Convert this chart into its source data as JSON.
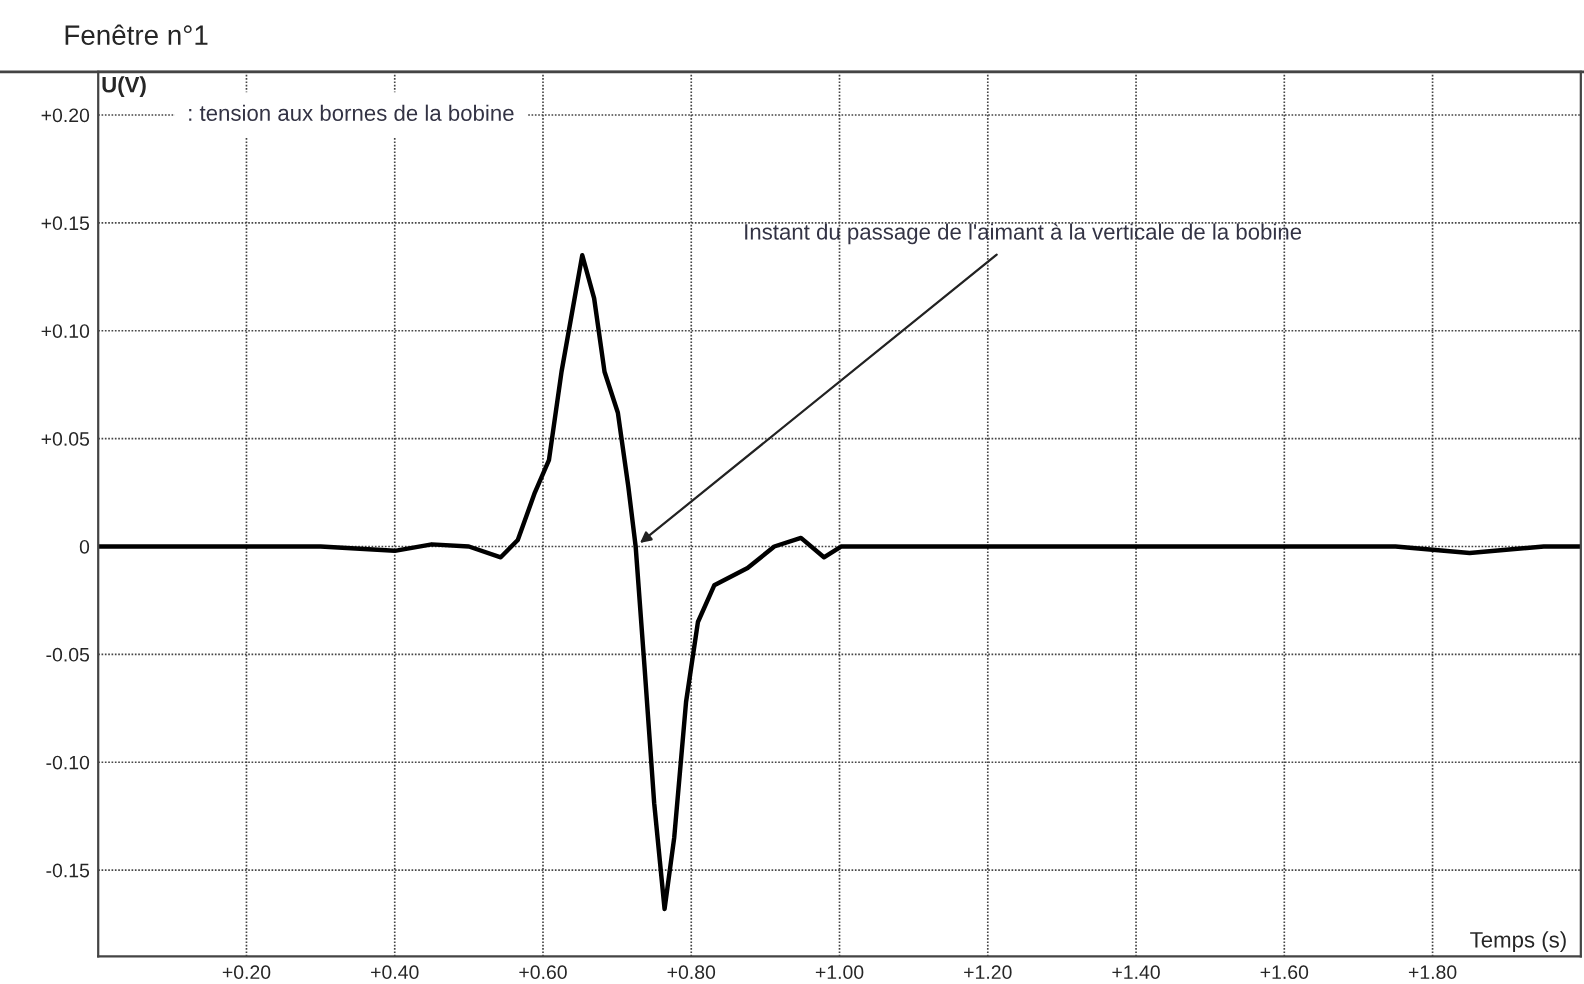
{
  "chart_data": {
    "type": "line",
    "title": "Fenêtre n°1",
    "xlabel": "Temps (s)",
    "ylabel": "U(V)",
    "annotations": [
      ": tension aux bornes de la bobine",
      {
        "text": "Instant du passage de l'aimant à la verticale de la bobine",
        "x": 0.725,
        "y": 0
      }
    ],
    "series": [
      {
        "color": "#000000",
        "x": [
          0,
          0.1,
          0.2,
          0.3,
          0.4,
          0.45,
          0.5,
          0.543,
          0.566,
          0.589,
          0.608,
          0.625,
          0.653,
          0.669,
          0.683,
          0.701,
          0.715,
          0.725,
          0.737,
          0.75,
          0.764,
          0.777,
          0.793,
          0.809,
          0.831,
          0.876,
          0.912,
          0.948,
          0.979,
          1.002,
          1.2,
          1.4,
          1.6,
          1.75,
          1.85,
          1.95,
          2.0
        ],
        "values": [
          0,
          0,
          0,
          0,
          -0.002,
          0.001,
          0,
          -0.005,
          0.003,
          0.025,
          0.04,
          0.081,
          0.135,
          0.115,
          0.081,
          0.062,
          0.028,
          0,
          -0.056,
          -0.119,
          -0.168,
          -0.135,
          -0.072,
          -0.035,
          -0.018,
          -0.01,
          0,
          0.004,
          -0.005,
          0,
          0,
          0,
          0,
          0,
          -0.003,
          0,
          0
        ]
      }
    ],
    "xlim": [
      0,
      2.0
    ],
    "ylim": [
      -0.19,
      0.22
    ],
    "xticks": [
      {
        "value": 0.2,
        "label": "+0.20"
      },
      {
        "value": 0.4,
        "label": "+0.40"
      },
      {
        "value": 0.6,
        "label": "+0.60"
      },
      {
        "value": 0.8,
        "label": "+0.80"
      },
      {
        "value": 1.0,
        "label": "+1.00"
      },
      {
        "value": 1.2,
        "label": "+1.20"
      },
      {
        "value": 1.4,
        "label": "+1.40"
      },
      {
        "value": 1.6,
        "label": "+1.60"
      },
      {
        "value": 1.8,
        "label": "+1.80"
      }
    ],
    "yticks": [
      {
        "value": -0.15,
        "label": "-0.15"
      },
      {
        "value": -0.1,
        "label": "-0.10"
      },
      {
        "value": -0.05,
        "label": "-0.05"
      },
      {
        "value": 0,
        "label": "0"
      },
      {
        "value": 0.05,
        "label": "+0.05"
      },
      {
        "value": 0.1,
        "label": "+0.10"
      },
      {
        "value": 0.15,
        "label": "+0.15"
      },
      {
        "value": 0.2,
        "label": "+0.20"
      }
    ],
    "grid": true,
    "legend": false,
    "marker": "none",
    "line_style": "solid"
  }
}
